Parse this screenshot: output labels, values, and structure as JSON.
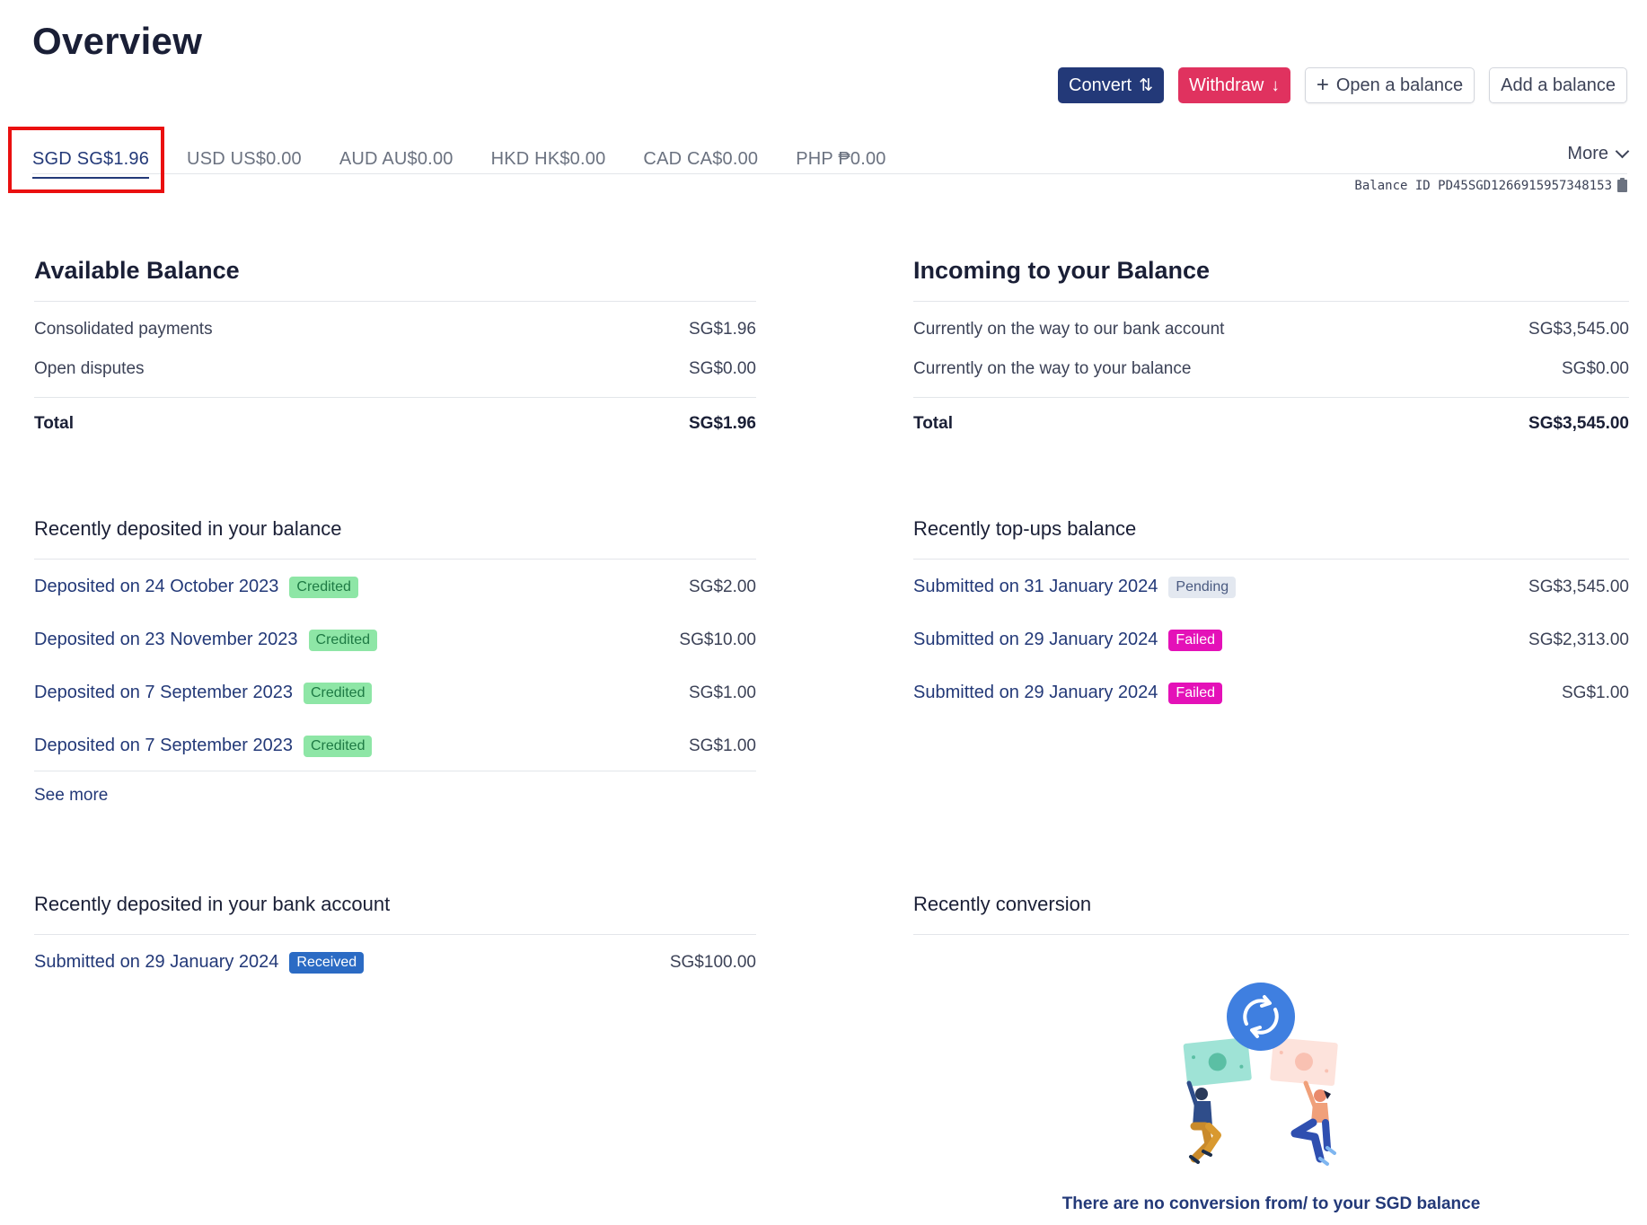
{
  "page": {
    "title": "Overview"
  },
  "actions": {
    "convert_label": "Convert",
    "withdraw_label": "Withdraw",
    "open_balance_label": "Open a balance",
    "add_balance_label": "Add a balance"
  },
  "tabs": [
    {
      "label": "SGD SG$1.96",
      "active": true
    },
    {
      "label": "USD US$0.00"
    },
    {
      "label": "AUD AU$0.00"
    },
    {
      "label": "HKD HK$0.00"
    },
    {
      "label": "CAD CA$0.00"
    },
    {
      "label": "PHP ₱0.00"
    }
  ],
  "more_label": "More",
  "balance_id": "Balance ID PD45SGD1266915957348153",
  "available": {
    "title": "Available Balance",
    "rows": [
      {
        "label": "Consolidated payments",
        "amount": "SG$1.96"
      },
      {
        "label": "Open disputes",
        "amount": "SG$0.00"
      }
    ],
    "total_label": "Total",
    "total_amount": "SG$1.96"
  },
  "incoming": {
    "title": "Incoming to your Balance",
    "rows": [
      {
        "label": "Currently on the way to our bank account",
        "amount": "SG$3,545.00"
      },
      {
        "label": "Currently on the way to your balance",
        "amount": "SG$0.00"
      }
    ],
    "total_label": "Total",
    "total_amount": "SG$3,545.00"
  },
  "recent_deposits": {
    "title": "Recently deposited in your balance",
    "items": [
      {
        "label": "Deposited on 24 October 2023",
        "status": "Credited",
        "amount": "SG$2.00"
      },
      {
        "label": "Deposited on 23 November 2023",
        "status": "Credited",
        "amount": "SG$10.00"
      },
      {
        "label": "Deposited on 7 September 2023",
        "status": "Credited",
        "amount": "SG$1.00"
      },
      {
        "label": "Deposited on 7 September 2023",
        "status": "Credited",
        "amount": "SG$1.00"
      }
    ],
    "see_more": "See more"
  },
  "recent_topups": {
    "title": "Recently top-ups balance",
    "items": [
      {
        "label": "Submitted on 31 January 2024",
        "status": "Pending",
        "amount": "SG$3,545.00"
      },
      {
        "label": "Submitted on 29 January 2024",
        "status": "Failed",
        "amount": "SG$2,313.00"
      },
      {
        "label": "Submitted on 29 January 2024",
        "status": "Failed",
        "amount": "SG$1.00"
      }
    ]
  },
  "bank_deposits": {
    "title": "Recently deposited in your bank account",
    "items": [
      {
        "label": "Submitted on 29 January 2024",
        "status": "Received",
        "amount": "SG$100.00"
      }
    ]
  },
  "conversion": {
    "title": "Recently conversion",
    "empty_text": "There are no conversion from/ to your SGD balance"
  },
  "colors": {
    "primary": "#233978",
    "withdraw": "#e0325f",
    "credited_bg": "#8ee6a6",
    "failed_bg": "#e411b8",
    "received_bg": "#2b6bc4",
    "highlight": "#ea1010"
  }
}
